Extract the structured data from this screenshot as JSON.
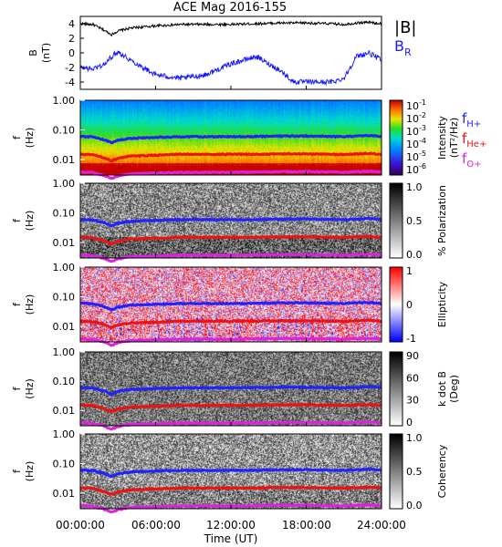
{
  "chart_data": [
    {
      "type": "line",
      "title": "ACE Mag 2016-155",
      "ylabel": "B\n(nT)",
      "ylim": [
        -5,
        5
      ],
      "yticks": [
        "4",
        "2",
        "0",
        "-2",
        "-4"
      ],
      "xlim": [
        "00:00:00",
        "24:00:00"
      ],
      "series": [
        {
          "name": "|B|",
          "color": "#000000",
          "x_hours": [
            0,
            1,
            2,
            2.5,
            3,
            4,
            6,
            8,
            10,
            12,
            14,
            16,
            18,
            20,
            21,
            22,
            23,
            24
          ],
          "values": [
            4.0,
            3.9,
            3.0,
            2.5,
            3.0,
            3.4,
            3.7,
            3.9,
            3.9,
            3.9,
            4.0,
            4.1,
            4.1,
            4.0,
            3.9,
            4.1,
            4.2,
            4.0
          ]
        },
        {
          "name": "B",
          "subscript": "R",
          "color": "#1a1aff",
          "x_hours": [
            0,
            1,
            2,
            2.5,
            3,
            4,
            5,
            6,
            8,
            10,
            12,
            14,
            16,
            17,
            18,
            19,
            20,
            21,
            21.5,
            22,
            23,
            24
          ],
          "values": [
            -2.0,
            -2.2,
            -1.5,
            -0.5,
            0.2,
            -1.0,
            -2.0,
            -3.0,
            -3.5,
            -3.0,
            -1.5,
            -0.5,
            -2.5,
            -4.0,
            -4.0,
            -4.0,
            -4.0,
            -3.5,
            -2.0,
            -0.5,
            0.0,
            -1.0
          ]
        }
      ]
    },
    {
      "type": "heatmap",
      "name": "intensity",
      "ylabel": "f\n(Hz)",
      "ylim": [
        0.003,
        1.0
      ],
      "yscale": "log",
      "yticks": [
        "1.00",
        "0.10",
        "0.01"
      ],
      "colorbar": {
        "label": "Intensity",
        "units": "(nT²/Hz)",
        "base": "10",
        "exps": [
          "-1",
          "-2",
          "-3",
          "-4",
          "-5",
          "-6"
        ],
        "ticks": [
          "10^-1",
          "10^-2",
          "10^-3",
          "10^-4",
          "10^-5",
          "10^-6"
        ]
      },
      "legend": [
        {
          "name": "f",
          "sub": "H+",
          "color": "#2222ff"
        },
        {
          "name": "f",
          "sub": "He+",
          "color": "#ee1111"
        },
        {
          "name": "f",
          "sub": "O+",
          "color": "#dd22dd"
        }
      ]
    },
    {
      "type": "heatmap",
      "name": "polarization",
      "ylabel": "f\n(Hz)",
      "ylim": [
        0.003,
        1.0
      ],
      "yscale": "log",
      "yticks": [
        "1.00",
        "0.10",
        "0.01"
      ],
      "colorbar": {
        "label": "% Polarization",
        "ticks": [
          "1.0",
          "0.5",
          "0.0"
        ],
        "range": [
          0,
          1
        ]
      }
    },
    {
      "type": "heatmap",
      "name": "ellipticity",
      "ylabel": "f\n(Hz)",
      "ylim": [
        0.003,
        1.0
      ],
      "yscale": "log",
      "yticks": [
        "1.00",
        "0.10",
        "0.01"
      ],
      "colorbar": {
        "label": "Ellipticity",
        "ticks": [
          "1",
          "0",
          "-1"
        ],
        "range": [
          -1,
          1
        ]
      }
    },
    {
      "type": "heatmap",
      "name": "kdotb",
      "ylabel": "f\n(Hz)",
      "ylim": [
        0.003,
        1.0
      ],
      "yscale": "log",
      "yticks": [
        "1.00",
        "0.10",
        "0.01"
      ],
      "colorbar": {
        "label": "k dot B",
        "units": "(Deg)",
        "ticks": [
          "90",
          "60",
          "30",
          "0"
        ],
        "range": [
          0,
          90
        ]
      }
    },
    {
      "type": "heatmap",
      "name": "coherency",
      "ylabel": "f\n(Hz)",
      "ylim": [
        0.003,
        1.0
      ],
      "yscale": "log",
      "yticks": [
        "1.00",
        "0.10",
        "0.01"
      ],
      "colorbar": {
        "label": "Coherency",
        "ticks": [
          "1.0",
          "0.5",
          "0.0"
        ],
        "range": [
          0,
          1
        ]
      }
    }
  ],
  "gyrofrequency_lines": {
    "x_hours": [
      0,
      1,
      2,
      2.5,
      3,
      4,
      6,
      8,
      10,
      12,
      14,
      16,
      18,
      20,
      21,
      22,
      23,
      24
    ],
    "fHplus": [
      0.06,
      0.058,
      0.045,
      0.036,
      0.045,
      0.052,
      0.056,
      0.059,
      0.059,
      0.059,
      0.06,
      0.062,
      0.062,
      0.06,
      0.059,
      0.062,
      0.064,
      0.06
    ],
    "fHeplus": [
      0.015,
      0.0145,
      0.011,
      0.009,
      0.011,
      0.013,
      0.014,
      0.015,
      0.015,
      0.015,
      0.015,
      0.0155,
      0.0155,
      0.015,
      0.0148,
      0.0155,
      0.016,
      0.015
    ],
    "fOplus": [
      0.0038,
      0.0036,
      0.0028,
      0.0023,
      0.0028,
      0.0033,
      0.0035,
      0.0037,
      0.0037,
      0.0037,
      0.0038,
      0.0039,
      0.0039,
      0.0038,
      0.0037,
      0.0039,
      0.004,
      0.0038
    ]
  },
  "xaxis": {
    "label": "Time (UT)",
    "ticks": [
      "00:00:00",
      "06:00:00",
      "12:00:00",
      "18:00:00",
      "24:00:00"
    ]
  }
}
